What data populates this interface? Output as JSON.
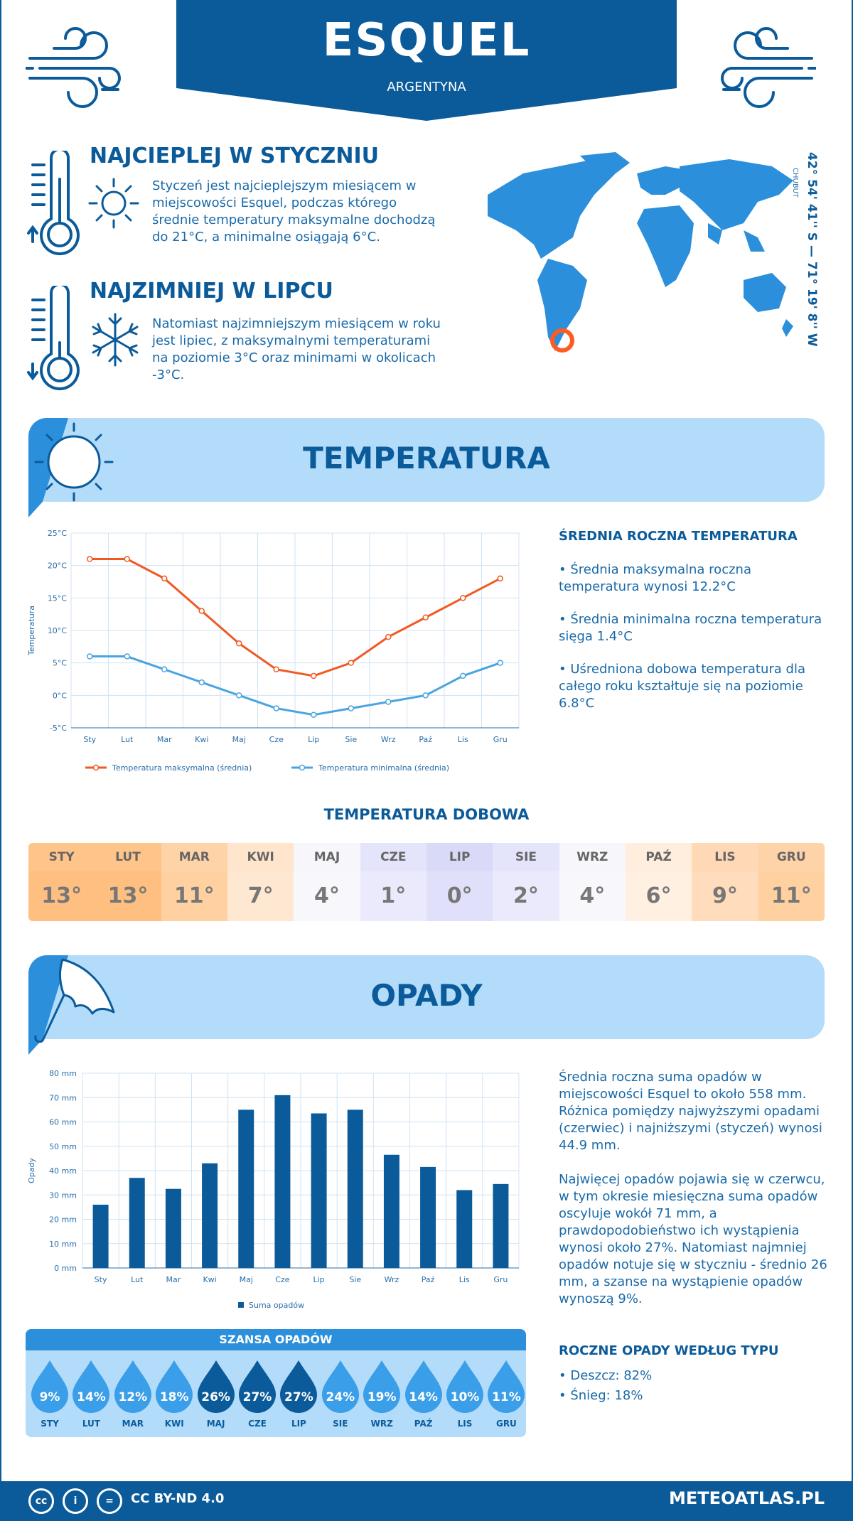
{
  "header": {
    "city": "ESQUEL",
    "country": "ARGENTYNA"
  },
  "coords": {
    "text": "42° 54' 41'' S — 71° 19' 8'' W",
    "region": "CHUBUT"
  },
  "warmest": {
    "title": "NAJCIEPLEJ W STYCZNIU",
    "text": "Styczeń jest najcieplejszym miesiącem w miejscowości Esquel, podczas którego średnie temperatury maksymalne dochodzą do 21°C, a minimalne osiągają 6°C."
  },
  "coldest": {
    "title": "NAJZIMNIEJ W LIPCU",
    "text": "Natomiast najzimniejszym miesiącem w roku jest lipiec, z maksymalnymi temperaturami na poziomie 3°C oraz minimami w okolicach -3°C."
  },
  "temperature": {
    "band_title": "TEMPERATURA",
    "right_title": "ŚREDNIA ROCZNA TEMPERATURA",
    "bullets": [
      "• Średnia maksymalna roczna temperatura wynosi 12.2°C",
      "• Średnia minimalna roczna temperatura sięga 1.4°C",
      "• Uśredniona dobowa temperatura dla całego roku kształtuje się na poziomie 6.8°C"
    ],
    "legend_max": "Temperatura maksymalna (średnia)",
    "legend_min": "Temperatura minimalna (średnia)"
  },
  "daily": {
    "title": "TEMPERATURA DOBOWA",
    "months": [
      "STY",
      "LUT",
      "MAR",
      "KWI",
      "MAJ",
      "CZE",
      "LIP",
      "SIE",
      "WRZ",
      "PAŹ",
      "LIS",
      "GRU"
    ],
    "values": [
      "13°",
      "13°",
      "11°",
      "7°",
      "4°",
      "1°",
      "0°",
      "2°",
      "4°",
      "6°",
      "9°",
      "11°"
    ],
    "head_colors": [
      "#ffc48a",
      "#ffc48a",
      "#ffd3a8",
      "#ffe5cc",
      "#f7f7fb",
      "#e4e4fb",
      "#d9d9f8",
      "#e4e4fb",
      "#f7f7fb",
      "#ffeedd",
      "#ffd9b5",
      "#ffd3a8"
    ],
    "cell_colors": [
      "#ffbf80",
      "#ffbf80",
      "#ffd0a0",
      "#ffe8d2",
      "#f8f8fc",
      "#eaeafc",
      "#e0e0fa",
      "#eaeafc",
      "#f8f8fc",
      "#fff0e2",
      "#ffdcbb",
      "#ffd0a0"
    ]
  },
  "precip": {
    "band_title": "OPADY",
    "text1": "Średnia roczna suma opadów w miejscowości Esquel to około 558 mm. Różnica pomiędzy najwyższymi opadami (czerwiec) i najniższymi (styczeń) wynosi 44.9 mm.",
    "text2": "Najwięcej opadów pojawia się w czerwcu, w tym okresie miesięczna suma opadów oscyluje wokół 71 mm, a prawdopodobieństwo ich wystąpienia wynosi około 27%. Natomiast najmniej opadów notuje się w styczniu - średnio 26 mm, a szanse na wystąpienie opadów wynoszą 9%.",
    "type_title": "ROCZNE OPADY WEDŁUG TYPU",
    "types": [
      "• Deszcz: 82%",
      "• Śnieg: 18%"
    ],
    "legend": "Suma opadów",
    "chance_title": "SZANSA OPADÓW",
    "chance": [
      "9%",
      "14%",
      "12%",
      "18%",
      "26%",
      "27%",
      "27%",
      "24%",
      "19%",
      "14%",
      "10%",
      "11%"
    ],
    "chance_months": [
      "STY",
      "LUT",
      "MAR",
      "KWI",
      "MAJ",
      "CZE",
      "LIP",
      "SIE",
      "WRZ",
      "PAŹ",
      "LIS",
      "GRU"
    ],
    "drop_colors": [
      "#3a9ee8",
      "#3a9ee8",
      "#3a9ee8",
      "#3a9ee8",
      "#0b5b9a",
      "#0b5b9a",
      "#0b5b9a",
      "#3a9ee8",
      "#3a9ee8",
      "#3a9ee8",
      "#3a9ee8",
      "#3a9ee8"
    ]
  },
  "chart_data": [
    {
      "type": "line",
      "categories": [
        "Sty",
        "Lut",
        "Mar",
        "Kwi",
        "Maj",
        "Cze",
        "Lip",
        "Sie",
        "Wrz",
        "Paź",
        "Lis",
        "Gru"
      ],
      "series": [
        {
          "name": "Temperatura maksymalna (średnia)",
          "values": [
            21,
            21,
            18,
            13,
            8,
            4,
            3,
            5,
            9,
            12,
            15,
            18
          ],
          "color": "#f05a22"
        },
        {
          "name": "Temperatura minimalna (średnia)",
          "values": [
            6,
            6,
            4,
            2,
            0,
            -2,
            -3,
            -2,
            -1,
            0,
            3,
            5
          ],
          "color": "#4aa4e0"
        }
      ],
      "ylabel": "Temperatura",
      "ylim": [
        -5,
        25
      ],
      "yticks": [
        "-5°C",
        "0°C",
        "5°C",
        "10°C",
        "15°C",
        "20°C",
        "25°C"
      ],
      "grid": true,
      "legend": "bottom"
    },
    {
      "type": "bar",
      "categories": [
        "Sty",
        "Lut",
        "Mar",
        "Kwi",
        "Maj",
        "Cze",
        "Lip",
        "Sie",
        "Wrz",
        "Paź",
        "Lis",
        "Gru"
      ],
      "series": [
        {
          "name": "Suma opadów",
          "values": [
            26,
            37,
            32.5,
            43,
            65,
            71,
            63.5,
            65,
            46.5,
            41.5,
            32,
            34.5
          ],
          "color": "#0b5b9a"
        }
      ],
      "ylabel": "Opady",
      "ylim": [
        0,
        80
      ],
      "yticks": [
        "0 mm",
        "10 mm",
        "20 mm",
        "30 mm",
        "40 mm",
        "50 mm",
        "60 mm",
        "70 mm",
        "80 mm"
      ],
      "grid": true,
      "legend": "bottom"
    }
  ],
  "footer": {
    "license": "CC BY-ND 4.0",
    "site": "METEOATLAS.PL"
  },
  "colors": {
    "primary": "#0b5b9a",
    "light": "#b3dcfb",
    "accent": "#2b8fdc",
    "orange": "#f05a22"
  }
}
